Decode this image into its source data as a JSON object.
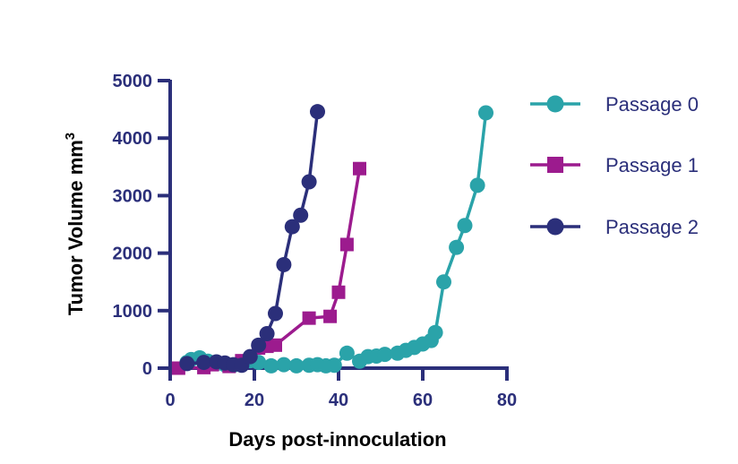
{
  "chart_data": {
    "type": "line",
    "title": "",
    "xlabel": "Days post-innoculation",
    "ylabel": "Tumor Volume mm",
    "ylabel_superscript": "3",
    "xlim": [
      0,
      80
    ],
    "ylim": [
      0,
      5000
    ],
    "xticks": [
      "0",
      "20",
      "40",
      "60",
      "80"
    ],
    "yticks": [
      "0",
      "1000",
      "2000",
      "3000",
      "4000",
      "5000"
    ],
    "grid": false,
    "legend_position": "right",
    "axis_color": "#2b2f7a",
    "series": [
      {
        "name": "Passage 0",
        "color": "#2aa3a9",
        "marker": "circle",
        "x": [
          4,
          5,
          7,
          9,
          11,
          13,
          15,
          17,
          19,
          21,
          24,
          27,
          30,
          33,
          35,
          37,
          39,
          42,
          45,
          47,
          49,
          51,
          54,
          56,
          58,
          60,
          62,
          63,
          65,
          68,
          70,
          73,
          75
        ],
        "y": [
          100,
          150,
          180,
          120,
          80,
          60,
          50,
          80,
          130,
          100,
          40,
          60,
          40,
          50,
          60,
          40,
          50,
          260,
          120,
          200,
          210,
          240,
          260,
          310,
          360,
          420,
          480,
          620,
          1500,
          2100,
          2480,
          3180,
          4440
        ]
      },
      {
        "name": "Passage 1",
        "color": "#9c1b8e",
        "marker": "square",
        "x": [
          2,
          8,
          10,
          14,
          17,
          21,
          23,
          25,
          33,
          38,
          40,
          42,
          45
        ],
        "y": [
          0,
          10,
          60,
          30,
          130,
          350,
          380,
          400,
          870,
          900,
          1320,
          2150,
          3470
        ]
      },
      {
        "name": "Passage 2",
        "color": "#2b2f7a",
        "marker": "circle",
        "x": [
          4,
          8,
          11,
          13,
          15,
          17,
          19,
          21,
          23,
          25,
          27,
          29,
          31,
          33,
          35
        ],
        "y": [
          80,
          100,
          110,
          90,
          60,
          50,
          200,
          400,
          600,
          950,
          1800,
          2460,
          2660,
          3240,
          4460
        ]
      }
    ]
  }
}
